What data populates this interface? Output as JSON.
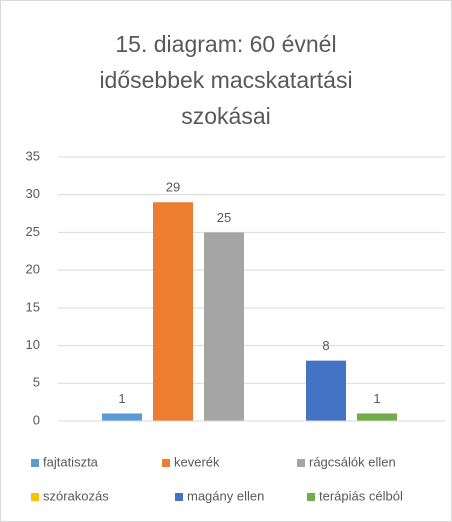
{
  "chart_data": {
    "type": "bar",
    "title": "15. diagram: 60 évnél idősebbek macskatartási szokásai",
    "series": [
      {
        "name": "fajtatiszta",
        "color": "#5b9bd5",
        "values": [
          1
        ]
      },
      {
        "name": "keverék",
        "color": "#ed7d31",
        "values": [
          29
        ]
      },
      {
        "name": "rágcsálók ellen",
        "color": "#a5a5a5",
        "values": [
          25
        ]
      },
      {
        "name": "szórakozás",
        "color": "#ffc000",
        "values": [
          null
        ]
      },
      {
        "name": "magány ellen",
        "color": "#4472c4",
        "values": [
          8
        ]
      },
      {
        "name": "terápiás célból",
        "color": "#70ad47",
        "values": [
          1
        ]
      }
    ],
    "ylim": [
      0,
      35
    ],
    "yticks": [
      0,
      5,
      10,
      15,
      20,
      25,
      30,
      35
    ],
    "grid": true,
    "legend": "bottom"
  }
}
